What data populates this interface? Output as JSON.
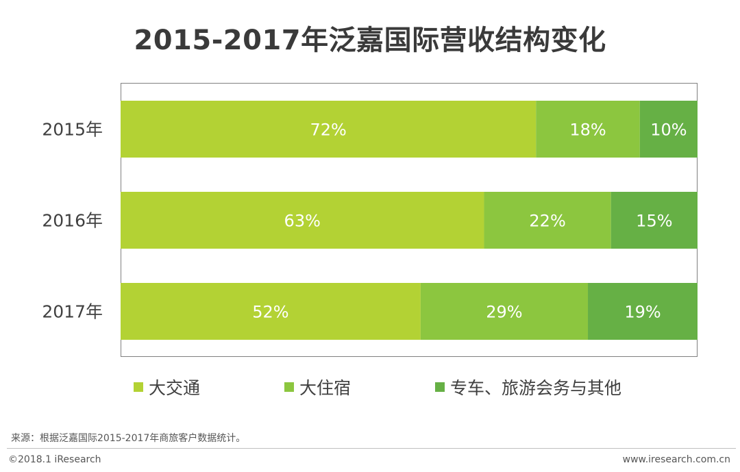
{
  "chart_data": {
    "type": "bar",
    "orientation": "horizontal",
    "stacked": true,
    "title": "2015-2017年泛嘉国际营收结构变化",
    "categories": [
      "2015年",
      "2016年",
      "2017年"
    ],
    "series": [
      {
        "name": "大交通",
        "values": [
          72,
          63,
          52
        ],
        "labels": [
          "72%",
          "63%",
          "52%"
        ],
        "color": "#b3d234"
      },
      {
        "name": "大住宿",
        "values": [
          18,
          22,
          29
        ],
        "labels": [
          "18%",
          "22%",
          "29%"
        ],
        "color": "#8cc63f"
      },
      {
        "name": "专车、旅游会务与其他",
        "values": [
          10,
          15,
          19
        ],
        "labels": [
          "10%",
          "15%",
          "19%"
        ],
        "color": "#66b045"
      }
    ],
    "xlim": [
      0,
      100
    ],
    "legend_position": "bottom",
    "grid": false,
    "plot_border_color": "#7f7f7f",
    "label_color": "#ffffff"
  },
  "footer": {
    "source": "来源：根据泛嘉国际2015-2017年商旅客户数据统计。",
    "copyright": "©2018.1 iResearch",
    "website": "www.iresearch.com.cn"
  }
}
